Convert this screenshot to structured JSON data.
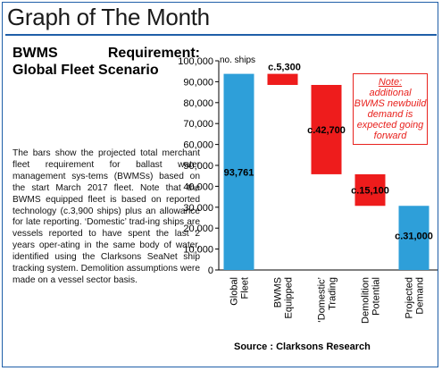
{
  "masthead": "Graph of The Month",
  "heading": "BWMS Requirement: Global Fleet Scenario",
  "body": "The bars show the projected total merchant fleet requirement for ballast water management sys-tems (BWMSs) based on the start March 2017 fleet. Note that the BWMS equipped fleet is based on reported technology (c.3,900 ships) plus an allowance for late reporting. ‘Domestic’ trad-ing ships are vessels reported to have spent the last 2 years oper-ating in the same body of water, identified using the Clarksons SeaNet ship tracking system. Demolition assumptions were made on a vessel sector basis.",
  "note": {
    "title": "Note:",
    "text": "additional BWMS newbuild demand is expected going forward"
  },
  "source": "Source : Clarksons Research",
  "colors": {
    "blue": "#2e9fd9",
    "red": "#ee1c1c",
    "frame": "#1f5fa8"
  },
  "chart_data": {
    "type": "bar",
    "subtype": "waterfall",
    "ylabel": "no. ships",
    "ylim": [
      0,
      100000
    ],
    "yticks": [
      0,
      10000,
      20000,
      30000,
      40000,
      50000,
      60000,
      70000,
      80000,
      90000,
      100000
    ],
    "ytick_labels": [
      "0",
      "10,000",
      "20,000",
      "30,000",
      "40,000",
      "50,000",
      "60,000",
      "70,000",
      "80,000",
      "90,000",
      "100,000"
    ],
    "categories": [
      "Global Fleet",
      "BWMS Equipped",
      "‘Domestic’ Trading",
      "Demolition Potential",
      "Projected Demand"
    ],
    "bars": [
      {
        "category": "Global Fleet",
        "bottom": 0,
        "top": 93761,
        "label": "93,761",
        "color": "blue"
      },
      {
        "category": "BWMS Equipped",
        "bottom": 88461,
        "top": 93761,
        "label": "c.5,300",
        "color": "red"
      },
      {
        "category": "‘Domestic’ Trading",
        "bottom": 45761,
        "top": 88461,
        "label": "c.42,700",
        "color": "red"
      },
      {
        "category": "Demolition Potential",
        "bottom": 30661,
        "top": 45761,
        "label": "c.15,100",
        "color": "red"
      },
      {
        "category": "Projected Demand",
        "bottom": 0,
        "top": 30661,
        "label": "c.31,000",
        "color": "blue"
      }
    ],
    "grid": false
  }
}
